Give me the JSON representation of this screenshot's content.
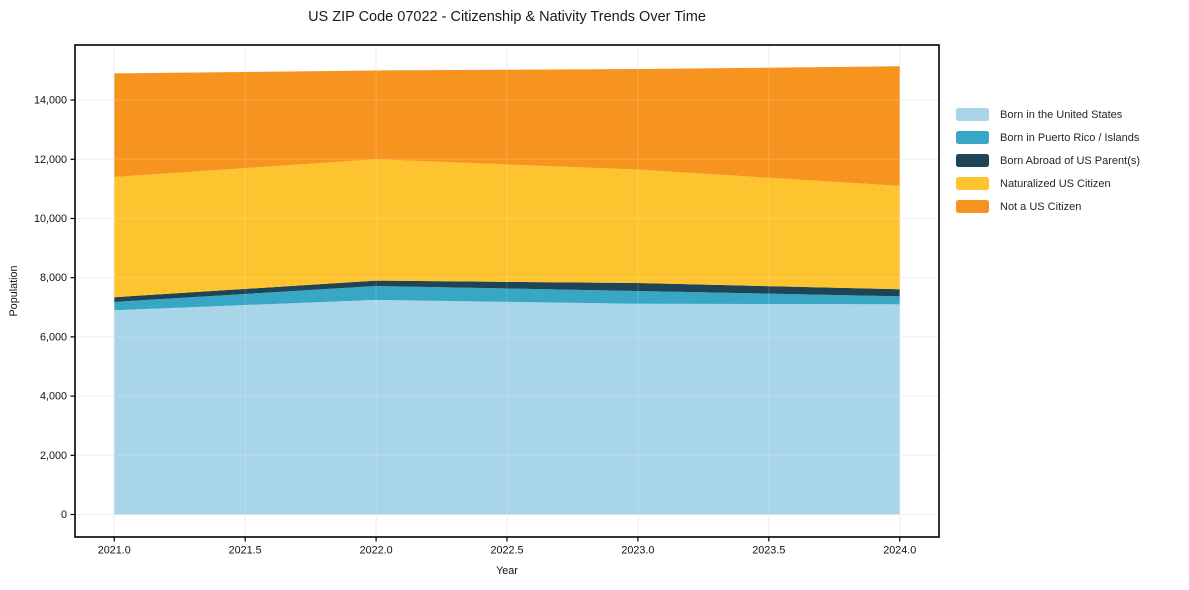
{
  "title": "US ZIP Code 07022 - Citizenship & Nativity Trends Over Time",
  "chart_data": {
    "type": "area",
    "stacked": true,
    "title": "US ZIP Code 07022 - Citizenship & Nativity Trends Over Time",
    "xlabel": "Year",
    "ylabel": "Population",
    "grid": true,
    "legend_position": "right-outside",
    "x": [
      2021,
      2022,
      2023,
      2024
    ],
    "series": [
      {
        "name": "Born in the United States",
        "color": "#A8D5E8",
        "values": [
          6900,
          7250,
          7120,
          7100
        ]
      },
      {
        "name": "Born in Puerto Rico / Islands",
        "color": "#38A7C5",
        "values": [
          280,
          470,
          430,
          270
        ]
      },
      {
        "name": "Born Abroad of US Parent(s)",
        "color": "#1E4456",
        "values": [
          160,
          180,
          270,
          240
        ]
      },
      {
        "name": "Naturalized US Citizen",
        "color": "#FDC42F",
        "values": [
          4060,
          4100,
          3830,
          3490
        ]
      },
      {
        "name": "Not a US Citizen",
        "color": "#F7941F",
        "values": [
          3500,
          3000,
          3400,
          4040
        ]
      }
    ],
    "stacked_totals": [
      14900,
      15000,
      15050,
      15140
    ],
    "xlim": [
      2020.85,
      2024.15
    ],
    "ylim": [
      -760,
      15860
    ],
    "xticks": {
      "values": [
        2021.0,
        2021.5,
        2022.0,
        2022.5,
        2023.0,
        2023.5,
        2024.0
      ],
      "labels": [
        "2021.0",
        "2021.5",
        "2022.0",
        "2022.5",
        "2023.0",
        "2023.5",
        "2024.0"
      ]
    },
    "yticks": {
      "values": [
        0,
        2000,
        4000,
        6000,
        8000,
        10000,
        12000,
        14000
      ],
      "labels": [
        "0",
        "2,000",
        "4,000",
        "6,000",
        "8,000",
        "10,000",
        "12,000",
        "14,000"
      ]
    },
    "colors": {
      "gridline": "#e9e9f2",
      "spine": "#000000",
      "text": "#111111"
    }
  }
}
